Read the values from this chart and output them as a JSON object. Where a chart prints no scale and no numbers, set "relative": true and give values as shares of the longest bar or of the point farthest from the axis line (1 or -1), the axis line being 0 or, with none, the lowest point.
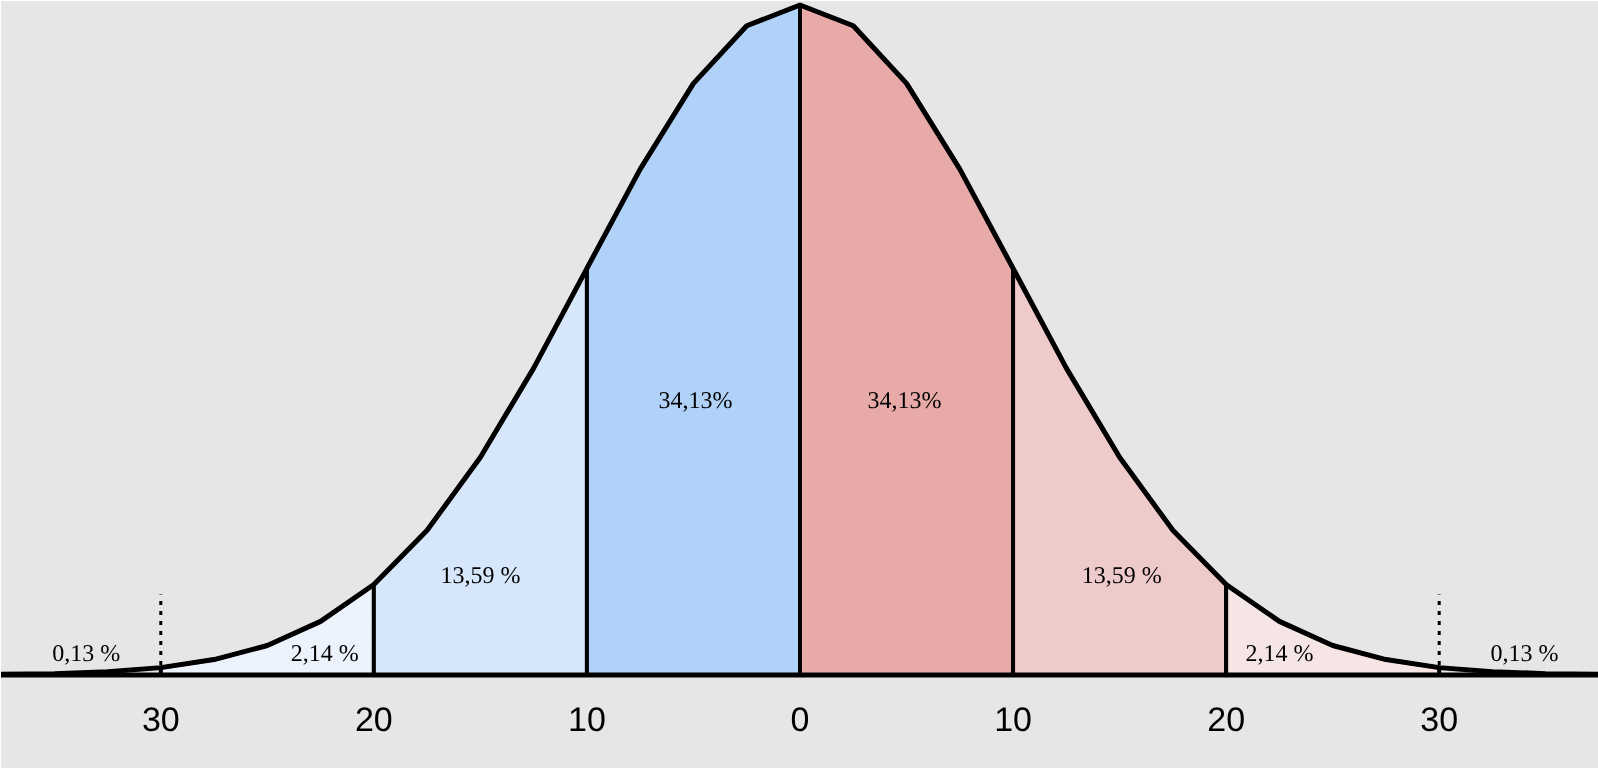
{
  "chart_data": {
    "type": "area",
    "relative": true,
    "xlim": [
      -37.5,
      37.5
    ],
    "xticks": [
      {
        "value": -30,
        "label": "30"
      },
      {
        "value": -20,
        "label": "20"
      },
      {
        "value": -10,
        "label": "10"
      },
      0,
      10,
      {
        "value": 20,
        "label": "20"
      },
      {
        "value": 30,
        "label": "30"
      }
    ],
    "series": [
      {
        "color": "#edf3fc",
        "x": [
          -30,
          -27.5,
          -25,
          -22.5,
          -20
        ],
        "values": [
          0.011,
          0.023,
          0.044,
          0.08,
          0.135
        ]
      },
      {
        "color": "#d6e6fb",
        "x": [
          -20,
          -17.5,
          -15,
          -12.5,
          -10
        ],
        "values": [
          0.135,
          0.216,
          0.325,
          0.458,
          0.607
        ]
      },
      {
        "color": "#b1d2f8",
        "x": [
          -10,
          -7.5,
          -5,
          -2.5,
          0
        ],
        "values": [
          0.607,
          0.755,
          0.883,
          0.969,
          1
        ]
      },
      {
        "color": "#e8a9a9",
        "x": [
          0,
          2.5,
          5,
          7.5,
          10
        ],
        "values": [
          1,
          0.969,
          0.883,
          0.755,
          0.607
        ]
      },
      {
        "color": "#efcaca",
        "x": [
          10,
          12.5,
          15,
          17.5,
          20
        ],
        "values": [
          0.607,
          0.458,
          0.325,
          0.216,
          0.135
        ]
      },
      {
        "color": "#f6e5e5",
        "x": [
          20,
          22.5,
          25,
          27.5,
          30
        ],
        "values": [
          0.135,
          0.08,
          0.044,
          0.023,
          0.011
        ]
      },
      {
        "type": "line",
        "color": "#000000",
        "x": [
          -37.5,
          -35,
          -32.5,
          -30,
          -27.5,
          -25,
          -22.5,
          -20,
          -17.5,
          -15,
          -12.5,
          -10,
          -7.5,
          -5,
          -2.5,
          0,
          2.5,
          5,
          7.5,
          10,
          12.5,
          15,
          17.5,
          20,
          22.5,
          25,
          27.5,
          30,
          32.5,
          35,
          37.5
        ],
        "values": [
          0.001,
          0.002,
          0.005,
          0.011,
          0.023,
          0.044,
          0.08,
          0.135,
          0.216,
          0.325,
          0.458,
          0.607,
          0.755,
          0.883,
          0.969,
          1,
          0.969,
          0.883,
          0.755,
          0.607,
          0.458,
          0.325,
          0.216,
          0.135,
          0.08,
          0.044,
          0.023,
          0.011,
          0.005,
          0.002,
          0.001
        ]
      }
    ],
    "ref_lines": [
      {
        "axis": "x",
        "value": -30,
        "line_style": "dotted",
        "color": "#000000"
      },
      {
        "axis": "x",
        "value": 30,
        "line_style": "dotted",
        "color": "#000000"
      }
    ],
    "annotations": [
      "0,13 %",
      "2,14 %",
      "13,59 %",
      "34,13%",
      "34,13%",
      "13,59 %",
      "2,14 %",
      "0,13 %"
    ]
  }
}
